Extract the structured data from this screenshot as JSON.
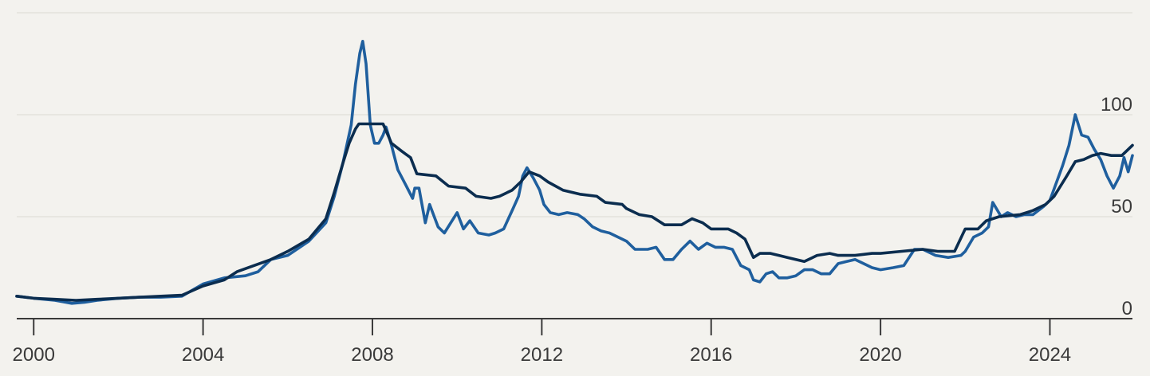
{
  "chart_data": {
    "type": "line",
    "title": "",
    "xlabel": "",
    "ylabel": "",
    "xlim": [
      1999.6,
      2025.95
    ],
    "ylim": [
      0,
      150
    ],
    "grid": true,
    "x_ticks": [
      {
        "value": 2000,
        "label": "2000"
      },
      {
        "value": 2004,
        "label": "2004"
      },
      {
        "value": 2008,
        "label": "2008"
      },
      {
        "value": 2012,
        "label": "2012"
      },
      {
        "value": 2016,
        "label": "2016"
      },
      {
        "value": 2020,
        "label": "2020"
      },
      {
        "value": 2024,
        "label": "2024"
      }
    ],
    "y_ticks": [
      {
        "value": 0,
        "label": "0"
      },
      {
        "value": 50,
        "label": "50"
      },
      {
        "value": 100,
        "label": "100"
      }
    ],
    "gridlines_y": [
      50,
      100,
      150
    ],
    "colors": {
      "series_a": "#1f5f9e",
      "series_b": "#0b2d4f"
    },
    "series": [
      {
        "values": [
          [
            1999.6,
            11
          ],
          [
            2000.0,
            10
          ],
          [
            2000.5,
            9
          ],
          [
            2000.9,
            7.5
          ],
          [
            2001.2,
            8
          ],
          [
            2001.5,
            9
          ],
          [
            2002.0,
            10
          ],
          [
            2002.5,
            10.5
          ],
          [
            2003.0,
            10.5
          ],
          [
            2003.5,
            11
          ],
          [
            2004.0,
            17
          ],
          [
            2004.5,
            20
          ],
          [
            2005.0,
            21
          ],
          [
            2005.3,
            23
          ],
          [
            2005.6,
            29
          ],
          [
            2006.0,
            31
          ],
          [
            2006.5,
            38
          ],
          [
            2006.9,
            47
          ],
          [
            2007.1,
            60
          ],
          [
            2007.3,
            76
          ],
          [
            2007.5,
            95
          ],
          [
            2007.6,
            115
          ],
          [
            2007.7,
            130
          ],
          [
            2007.77,
            136
          ],
          [
            2007.85,
            125
          ],
          [
            2007.95,
            95
          ],
          [
            2008.05,
            86
          ],
          [
            2008.15,
            86
          ],
          [
            2008.25,
            90
          ],
          [
            2008.32,
            94
          ],
          [
            2008.45,
            85
          ],
          [
            2008.6,
            73
          ],
          [
            2008.8,
            65
          ],
          [
            2008.95,
            59
          ],
          [
            2009.0,
            64
          ],
          [
            2009.1,
            64
          ],
          [
            2009.25,
            47
          ],
          [
            2009.35,
            56
          ],
          [
            2009.55,
            45
          ],
          [
            2009.7,
            42
          ],
          [
            2009.85,
            47
          ],
          [
            2010.0,
            52
          ],
          [
            2010.15,
            44
          ],
          [
            2010.3,
            48
          ],
          [
            2010.5,
            42
          ],
          [
            2010.75,
            41
          ],
          [
            2010.9,
            42
          ],
          [
            2011.1,
            44
          ],
          [
            2011.3,
            53
          ],
          [
            2011.45,
            60
          ],
          [
            2011.55,
            70
          ],
          [
            2011.65,
            74
          ],
          [
            2011.8,
            69
          ],
          [
            2011.95,
            63
          ],
          [
            2012.05,
            56
          ],
          [
            2012.2,
            52
          ],
          [
            2012.4,
            51
          ],
          [
            2012.6,
            52
          ],
          [
            2012.85,
            51
          ],
          [
            2013.0,
            49
          ],
          [
            2013.2,
            45
          ],
          [
            2013.4,
            43
          ],
          [
            2013.6,
            42
          ],
          [
            2013.8,
            40
          ],
          [
            2014.0,
            38
          ],
          [
            2014.2,
            34
          ],
          [
            2014.5,
            34
          ],
          [
            2014.7,
            35
          ],
          [
            2014.9,
            29
          ],
          [
            2015.1,
            29
          ],
          [
            2015.3,
            34
          ],
          [
            2015.5,
            38
          ],
          [
            2015.7,
            34
          ],
          [
            2015.9,
            37
          ],
          [
            2016.1,
            35
          ],
          [
            2016.3,
            35
          ],
          [
            2016.5,
            34
          ],
          [
            2016.7,
            26
          ],
          [
            2016.9,
            24
          ],
          [
            2017.0,
            19
          ],
          [
            2017.15,
            18
          ],
          [
            2017.3,
            22
          ],
          [
            2017.45,
            23
          ],
          [
            2017.6,
            20
          ],
          [
            2017.8,
            20
          ],
          [
            2018.0,
            21
          ],
          [
            2018.2,
            24
          ],
          [
            2018.4,
            24
          ],
          [
            2018.6,
            22
          ],
          [
            2018.8,
            22
          ],
          [
            2019.0,
            27
          ],
          [
            2019.2,
            28
          ],
          [
            2019.4,
            29
          ],
          [
            2019.6,
            27
          ],
          [
            2019.8,
            25
          ],
          [
            2020.0,
            24
          ],
          [
            2020.3,
            25
          ],
          [
            2020.55,
            26
          ],
          [
            2020.8,
            34
          ],
          [
            2021.0,
            34
          ],
          [
            2021.3,
            31
          ],
          [
            2021.6,
            30
          ],
          [
            2021.9,
            31
          ],
          [
            2022.0,
            33
          ],
          [
            2022.2,
            40
          ],
          [
            2022.4,
            42
          ],
          [
            2022.55,
            45
          ],
          [
            2022.65,
            57
          ],
          [
            2022.85,
            50
          ],
          [
            2023.0,
            52
          ],
          [
            2023.2,
            50
          ],
          [
            2023.4,
            51
          ],
          [
            2023.6,
            51
          ],
          [
            2023.85,
            55
          ],
          [
            2024.0,
            58
          ],
          [
            2024.3,
            75
          ],
          [
            2024.45,
            85
          ],
          [
            2024.6,
            100
          ],
          [
            2024.75,
            90
          ],
          [
            2024.9,
            89
          ],
          [
            2025.05,
            83
          ],
          [
            2025.2,
            78
          ],
          [
            2025.35,
            70
          ],
          [
            2025.5,
            64
          ],
          [
            2025.65,
            70
          ],
          [
            2025.75,
            79
          ],
          [
            2025.85,
            72
          ],
          [
            2025.95,
            80
          ]
        ]
      },
      {
        "values": [
          [
            1999.6,
            11
          ],
          [
            2000.0,
            10
          ],
          [
            2000.5,
            9.5
          ],
          [
            2001.0,
            9
          ],
          [
            2001.5,
            9.5
          ],
          [
            2002.0,
            10
          ],
          [
            2002.5,
            10.5
          ],
          [
            2003.0,
            11
          ],
          [
            2003.5,
            11.5
          ],
          [
            2004.0,
            16
          ],
          [
            2004.5,
            19
          ],
          [
            2004.8,
            23
          ],
          [
            2005.2,
            26
          ],
          [
            2005.6,
            29
          ],
          [
            2006.0,
            33
          ],
          [
            2006.5,
            39
          ],
          [
            2006.9,
            49
          ],
          [
            2007.1,
            62
          ],
          [
            2007.3,
            76
          ],
          [
            2007.45,
            86
          ],
          [
            2007.6,
            93
          ],
          [
            2007.68,
            95.5
          ],
          [
            2008.0,
            95.5
          ],
          [
            2008.25,
            95.5
          ],
          [
            2008.45,
            86
          ],
          [
            2008.7,
            82
          ],
          [
            2008.9,
            79
          ],
          [
            2009.05,
            71
          ],
          [
            2009.5,
            70
          ],
          [
            2009.8,
            65
          ],
          [
            2010.2,
            64
          ],
          [
            2010.45,
            60
          ],
          [
            2010.8,
            59
          ],
          [
            2011.0,
            60
          ],
          [
            2011.3,
            63
          ],
          [
            2011.5,
            67
          ],
          [
            2011.7,
            72
          ],
          [
            2011.95,
            70
          ],
          [
            2012.15,
            67
          ],
          [
            2012.5,
            63
          ],
          [
            2012.9,
            61
          ],
          [
            2013.3,
            60
          ],
          [
            2013.5,
            57
          ],
          [
            2013.9,
            56
          ],
          [
            2014.0,
            54
          ],
          [
            2014.3,
            51
          ],
          [
            2014.6,
            50
          ],
          [
            2014.9,
            46
          ],
          [
            2015.3,
            46
          ],
          [
            2015.55,
            49
          ],
          [
            2015.8,
            47
          ],
          [
            2016.0,
            44
          ],
          [
            2016.4,
            44
          ],
          [
            2016.6,
            42
          ],
          [
            2016.8,
            39
          ],
          [
            2017.0,
            30
          ],
          [
            2017.15,
            32
          ],
          [
            2017.4,
            32
          ],
          [
            2017.6,
            31
          ],
          [
            2017.8,
            30
          ],
          [
            2018.0,
            29
          ],
          [
            2018.2,
            28
          ],
          [
            2018.5,
            31
          ],
          [
            2018.8,
            32
          ],
          [
            2019.0,
            31
          ],
          [
            2019.4,
            31
          ],
          [
            2019.8,
            32
          ],
          [
            2020.0,
            32
          ],
          [
            2020.5,
            33
          ],
          [
            2021.0,
            34
          ],
          [
            2021.35,
            33
          ],
          [
            2021.75,
            33
          ],
          [
            2022.0,
            44
          ],
          [
            2022.3,
            44
          ],
          [
            2022.5,
            48
          ],
          [
            2022.8,
            50
          ],
          [
            2023.3,
            51
          ],
          [
            2023.6,
            53
          ],
          [
            2023.9,
            56
          ],
          [
            2024.1,
            60
          ],
          [
            2024.4,
            70
          ],
          [
            2024.6,
            77
          ],
          [
            2024.8,
            78
          ],
          [
            2025.0,
            80
          ],
          [
            2025.2,
            81
          ],
          [
            2025.45,
            80
          ],
          [
            2025.7,
            80
          ],
          [
            2025.95,
            85
          ]
        ]
      }
    ]
  }
}
